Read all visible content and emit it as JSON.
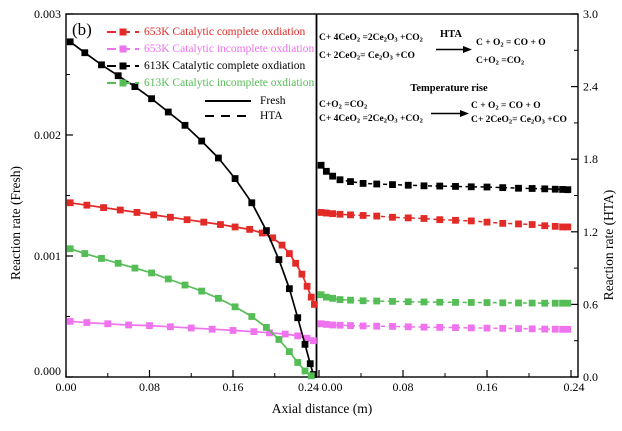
{
  "chart_data": {
    "type": "line",
    "panel_label": "(b)",
    "xlabel": "Axial distance (m)",
    "ylabel_left": "Reaction rate (Fresh)",
    "ylabel_right": "Reaction rate (HTA)",
    "x_range": [
      0,
      0.24
    ],
    "y_left_range": [
      0,
      0.003
    ],
    "y_right_range": [
      0,
      3.0
    ],
    "grid": false,
    "x_axis": {
      "major_values": [
        0,
        0.08,
        0.16,
        0.24
      ],
      "major_labels": [
        "0.00",
        "0.08",
        "0.16",
        "0.24"
      ],
      "minor_values": [
        0.04,
        0.12,
        0.2
      ]
    },
    "y_left_axis": {
      "major_values": [
        0,
        0.001,
        0.002,
        0.003
      ],
      "major_labels": [
        "0.000",
        "0.001",
        "0.002",
        "0.003"
      ],
      "minor_values": [
        0.0005,
        0.0015,
        0.0025
      ]
    },
    "y_right_axis": {
      "major_values": [
        0,
        0.6,
        1.2,
        1.8,
        2.4,
        3.0
      ],
      "major_labels": [
        "0.0",
        "0.6",
        "1.2",
        "1.8",
        "2.4",
        "3.0"
      ],
      "minor_values": [
        0.3,
        0.9,
        1.5,
        2.1,
        2.7
      ]
    },
    "series": [
      {
        "name": "653K Catalytic complete oxdiation",
        "color": "#e22a26",
        "fresh": [
          [
            0.004,
            0.00144
          ],
          [
            0.02,
            0.00142
          ],
          [
            0.036,
            0.0014
          ],
          [
            0.052,
            0.00138
          ],
          [
            0.068,
            0.00136
          ],
          [
            0.084,
            0.00134
          ],
          [
            0.1,
            0.00132
          ],
          [
            0.116,
            0.0013
          ],
          [
            0.132,
            0.00128
          ],
          [
            0.148,
            0.00126
          ],
          [
            0.162,
            0.00124
          ],
          [
            0.176,
            0.00122
          ],
          [
            0.188,
            0.00119
          ],
          [
            0.198,
            0.00115
          ],
          [
            0.207,
            0.00109
          ],
          [
            0.214,
            0.00102
          ],
          [
            0.22,
            0.00094
          ],
          [
            0.226,
            0.00085
          ],
          [
            0.231,
            0.00075
          ],
          [
            0.235,
            0.00066
          ],
          [
            0.238,
            0.0006
          ]
        ],
        "hta": [
          [
            0.002,
            1.36
          ],
          [
            0.007,
            1.355
          ],
          [
            0.013,
            1.35
          ],
          [
            0.02,
            1.345
          ],
          [
            0.03,
            1.34
          ],
          [
            0.042,
            1.335
          ],
          [
            0.055,
            1.33
          ],
          [
            0.07,
            1.32
          ],
          [
            0.085,
            1.315
          ],
          [
            0.1,
            1.31
          ],
          [
            0.115,
            1.3
          ],
          [
            0.13,
            1.295
          ],
          [
            0.145,
            1.29
          ],
          [
            0.16,
            1.28
          ],
          [
            0.175,
            1.27
          ],
          [
            0.19,
            1.265
          ],
          [
            0.203,
            1.26
          ],
          [
            0.215,
            1.25
          ],
          [
            0.225,
            1.245
          ],
          [
            0.232,
            1.24
          ],
          [
            0.237,
            1.24
          ]
        ]
      },
      {
        "name": "653K Catalytic incomplete oxdiation",
        "color": "#ef72ee",
        "fresh": [
          [
            0.004,
            0.00046
          ],
          [
            0.02,
            0.00045
          ],
          [
            0.04,
            0.00044
          ],
          [
            0.06,
            0.00043
          ],
          [
            0.08,
            0.000425
          ],
          [
            0.1,
            0.000415
          ],
          [
            0.12,
            0.000405
          ],
          [
            0.14,
            0.000395
          ],
          [
            0.16,
            0.000385
          ],
          [
            0.18,
            0.000375
          ],
          [
            0.195,
            0.000365
          ],
          [
            0.21,
            0.000355
          ],
          [
            0.222,
            0.00034
          ],
          [
            0.231,
            0.00032
          ],
          [
            0.237,
            0.0003
          ]
        ],
        "hta": [
          [
            0.002,
            0.44
          ],
          [
            0.007,
            0.435
          ],
          [
            0.013,
            0.43
          ],
          [
            0.02,
            0.428
          ],
          [
            0.03,
            0.425
          ],
          [
            0.042,
            0.422
          ],
          [
            0.055,
            0.42
          ],
          [
            0.07,
            0.418
          ],
          [
            0.085,
            0.415
          ],
          [
            0.1,
            0.412
          ],
          [
            0.115,
            0.41
          ],
          [
            0.13,
            0.408
          ],
          [
            0.145,
            0.406
          ],
          [
            0.16,
            0.404
          ],
          [
            0.175,
            0.402
          ],
          [
            0.19,
            0.4
          ],
          [
            0.203,
            0.398
          ],
          [
            0.215,
            0.396
          ],
          [
            0.225,
            0.395
          ],
          [
            0.232,
            0.394
          ],
          [
            0.237,
            0.394
          ]
        ]
      },
      {
        "name": "613K Catalytic complete oxdiation",
        "color": "#000000",
        "fresh": [
          [
            0.004,
            0.00277
          ],
          [
            0.018,
            0.00268
          ],
          [
            0.034,
            0.00258
          ],
          [
            0.05,
            0.00249
          ],
          [
            0.066,
            0.0024
          ],
          [
            0.082,
            0.0023
          ],
          [
            0.098,
            0.00219
          ],
          [
            0.114,
            0.00208
          ],
          [
            0.13,
            0.00195
          ],
          [
            0.146,
            0.00181
          ],
          [
            0.162,
            0.00164
          ],
          [
            0.178,
            0.00144
          ],
          [
            0.192,
            0.00121
          ],
          [
            0.204,
            0.00097
          ],
          [
            0.214,
            0.00073
          ],
          [
            0.222,
            0.00049
          ],
          [
            0.229,
            0.00027
          ],
          [
            0.234,
            0.00011
          ],
          [
            0.237,
            2e-05
          ]
        ],
        "hta": [
          [
            0.002,
            1.75
          ],
          [
            0.007,
            1.7
          ],
          [
            0.013,
            1.66
          ],
          [
            0.02,
            1.63
          ],
          [
            0.03,
            1.615
          ],
          [
            0.042,
            1.6
          ],
          [
            0.055,
            1.595
          ],
          [
            0.07,
            1.59
          ],
          [
            0.085,
            1.585
          ],
          [
            0.1,
            1.58
          ],
          [
            0.115,
            1.578
          ],
          [
            0.13,
            1.575
          ],
          [
            0.145,
            1.572
          ],
          [
            0.16,
            1.57
          ],
          [
            0.175,
            1.565
          ],
          [
            0.19,
            1.56
          ],
          [
            0.203,
            1.558
          ],
          [
            0.215,
            1.555
          ],
          [
            0.225,
            1.552
          ],
          [
            0.232,
            1.55
          ],
          [
            0.237,
            1.548
          ]
        ]
      },
      {
        "name": "613K Catalytic incomplete oxdiation",
        "color": "#55bd55",
        "fresh": [
          [
            0.004,
            0.00106
          ],
          [
            0.018,
            0.00102
          ],
          [
            0.034,
            0.00098
          ],
          [
            0.05,
            0.00094
          ],
          [
            0.066,
            0.0009
          ],
          [
            0.082,
            0.00086
          ],
          [
            0.098,
            0.00081
          ],
          [
            0.114,
            0.00076
          ],
          [
            0.13,
            0.00071
          ],
          [
            0.146,
            0.00065
          ],
          [
            0.162,
            0.00058
          ],
          [
            0.178,
            0.0005
          ],
          [
            0.192,
            0.00041
          ],
          [
            0.204,
            0.00031
          ],
          [
            0.214,
            0.00021
          ],
          [
            0.222,
            0.00012
          ],
          [
            0.229,
            5e-05
          ],
          [
            0.235,
            1e-05
          ]
        ],
        "hta": [
          [
            0.002,
            0.68
          ],
          [
            0.007,
            0.66
          ],
          [
            0.013,
            0.65
          ],
          [
            0.02,
            0.64
          ],
          [
            0.03,
            0.635
          ],
          [
            0.042,
            0.63
          ],
          [
            0.055,
            0.628
          ],
          [
            0.07,
            0.625
          ],
          [
            0.085,
            0.622
          ],
          [
            0.1,
            0.62
          ],
          [
            0.115,
            0.618
          ],
          [
            0.13,
            0.617
          ],
          [
            0.145,
            0.616
          ],
          [
            0.16,
            0.615
          ],
          [
            0.175,
            0.613
          ],
          [
            0.19,
            0.612
          ],
          [
            0.203,
            0.611
          ],
          [
            0.215,
            0.61
          ],
          [
            0.225,
            0.61
          ],
          [
            0.232,
            0.61
          ],
          [
            0.237,
            0.61
          ]
        ]
      }
    ],
    "style_legend": [
      {
        "label": "Fresh",
        "style": "solid"
      },
      {
        "label": "HTA",
        "style": "dashed"
      }
    ],
    "legend_position": "upper-left-and-center"
  },
  "annotations": {
    "hta_block": {
      "left": [
        "C+ 4CeO_2 =2Ce_2O_3 +CO_2",
        "C+ 2CeO_2= Ce_2O_3 +CO"
      ],
      "arrow_label": "HTA",
      "right": [
        "C + O_2 = CO + O",
        "C+O_2 =CO_2"
      ]
    },
    "temp_block": {
      "left": [
        "C+O_2 =CO_2",
        "C+ 4CeO_2 =2Ce_2O_3 +CO_2"
      ],
      "arrow_label": "Temperature rise",
      "right": [
        "C + O_2 = CO + O",
        "C+ 2CeO_2= Ce_2O_3 +CO"
      ]
    }
  },
  "colors": {
    "axis": "#000000",
    "background": "#ffffff",
    "red_series": "#e22a26",
    "magenta_series": "#ef72ee",
    "black_series": "#000000",
    "green_series": "#55bd55"
  }
}
